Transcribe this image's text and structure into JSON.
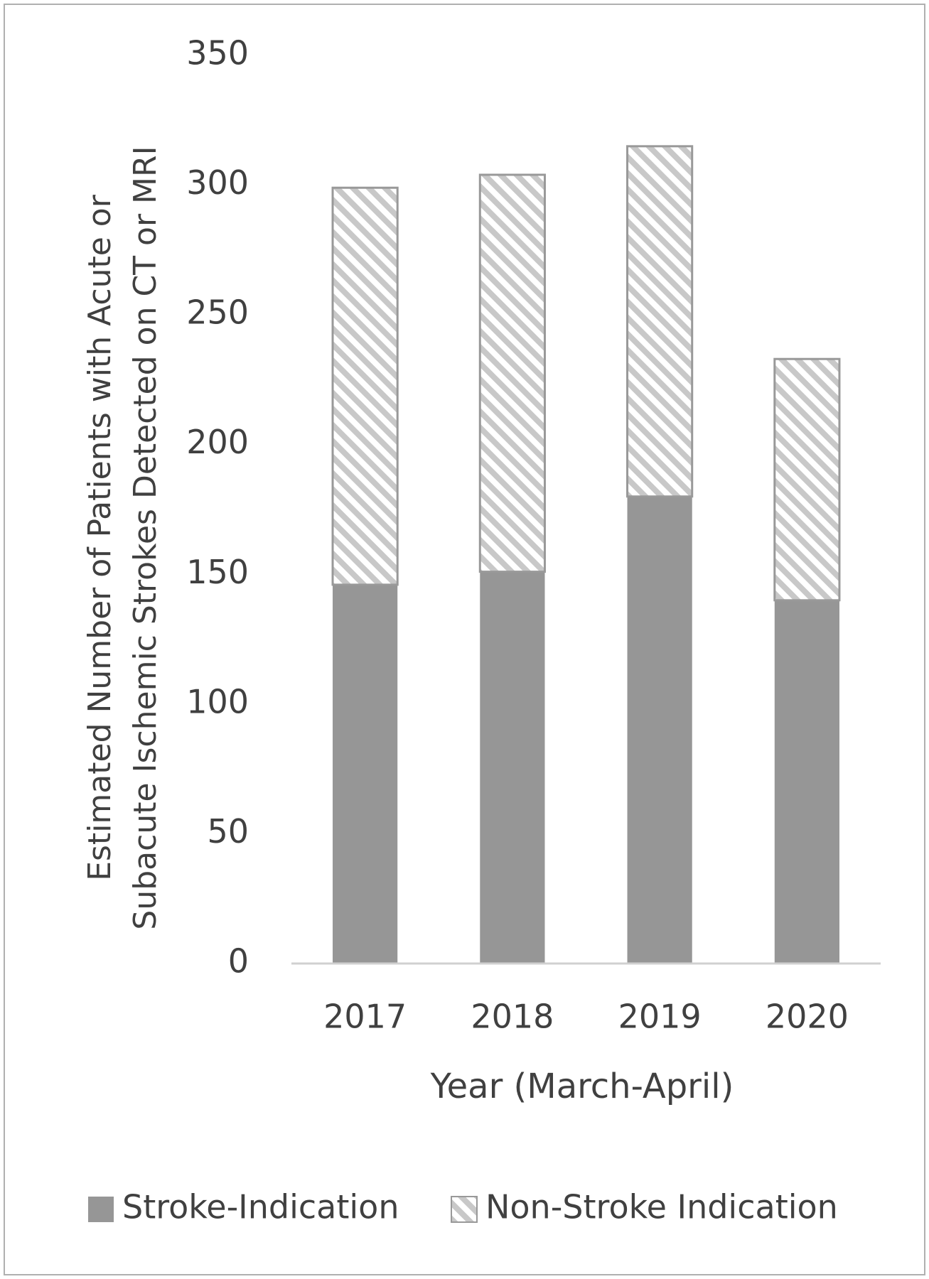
{
  "chart_data": {
    "type": "stacked_bar",
    "ylabel": [
      "Estimated Number of Patients with Acute or",
      "Subacute Ischemic Strokes Detected on CT or MRI"
    ],
    "xlabel": "Year (March-April)",
    "categories": [
      "2017",
      "2018",
      "2019",
      "2020"
    ],
    "series": [
      {
        "name": "Stroke-Indication",
        "color": "#969696",
        "fill": "solid",
        "values": [
          146,
          151,
          180,
          140
        ]
      },
      {
        "name": "Non-Stroke Indication",
        "color": "#c8c8c8",
        "fill": "hatch",
        "values": [
          153,
          153,
          135,
          93
        ]
      }
    ],
    "ylim": [
      0,
      350
    ],
    "yticks": [
      0,
      50,
      100,
      150,
      200,
      250,
      300,
      350
    ],
    "legend": "bottom"
  }
}
